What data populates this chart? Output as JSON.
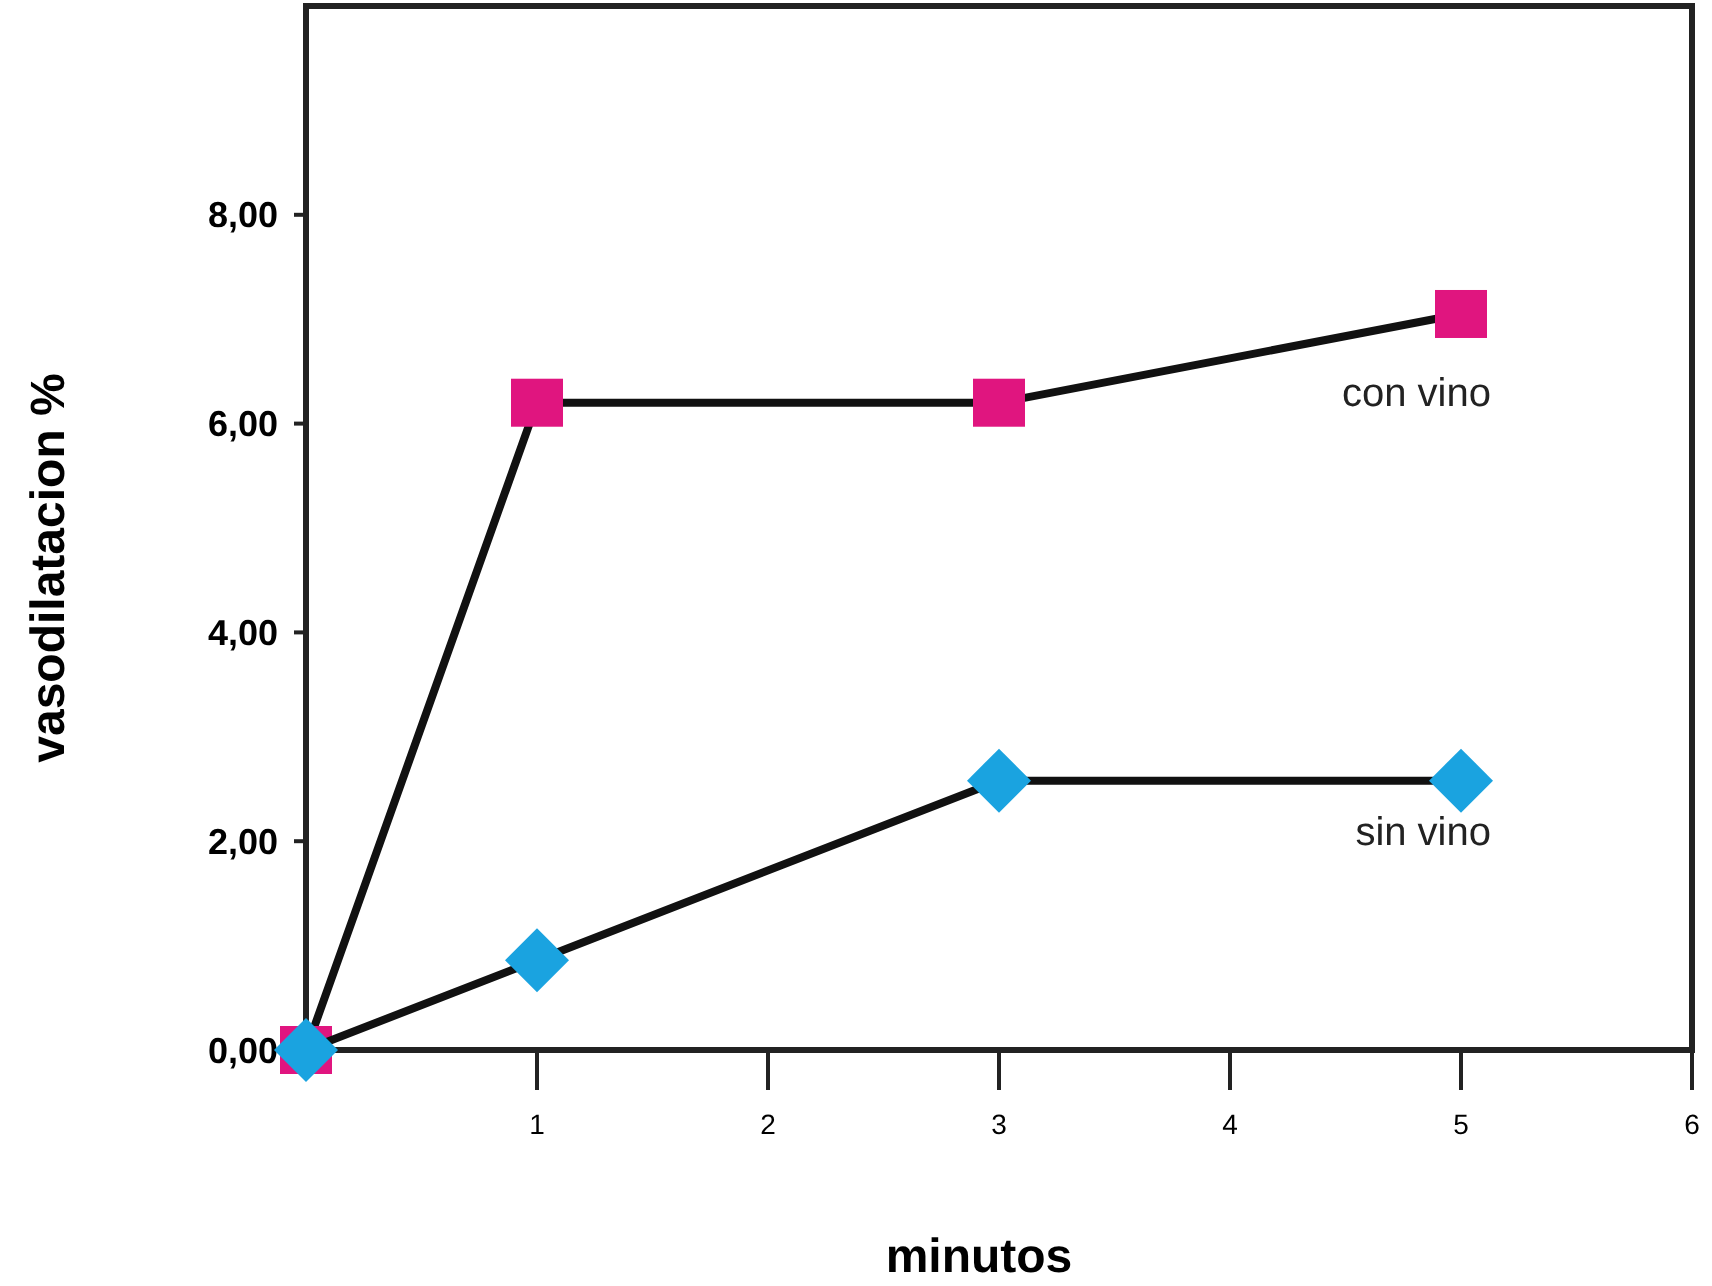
{
  "chart_data": {
    "type": "line",
    "xlabel": "minutos",
    "ylabel": "vasodilatacion %",
    "xlim": [
      0,
      6
    ],
    "xticks": [
      1,
      2,
      3,
      4,
      5,
      6
    ],
    "ylim": [
      0,
      10
    ],
    "yticks": [
      {
        "value": 0,
        "label": "0,00"
      },
      {
        "value": 2,
        "label": "2,00"
      },
      {
        "value": 4,
        "label": "4,00"
      },
      {
        "value": 6,
        "label": "6,00"
      },
      {
        "value": 8,
        "label": "8,00"
      }
    ],
    "series": [
      {
        "name": "con vino",
        "color": "#e0157f",
        "marker": "square",
        "x": [
          0,
          1,
          3,
          5
        ],
        "values": [
          0,
          6.2,
          6.2,
          7.05
        ]
      },
      {
        "name": "sin vino",
        "color": "#1aa3e0",
        "marker": "diamond",
        "x": [
          0,
          1,
          3,
          5
        ],
        "values": [
          0,
          0.86,
          2.58,
          2.58
        ]
      }
    ]
  }
}
